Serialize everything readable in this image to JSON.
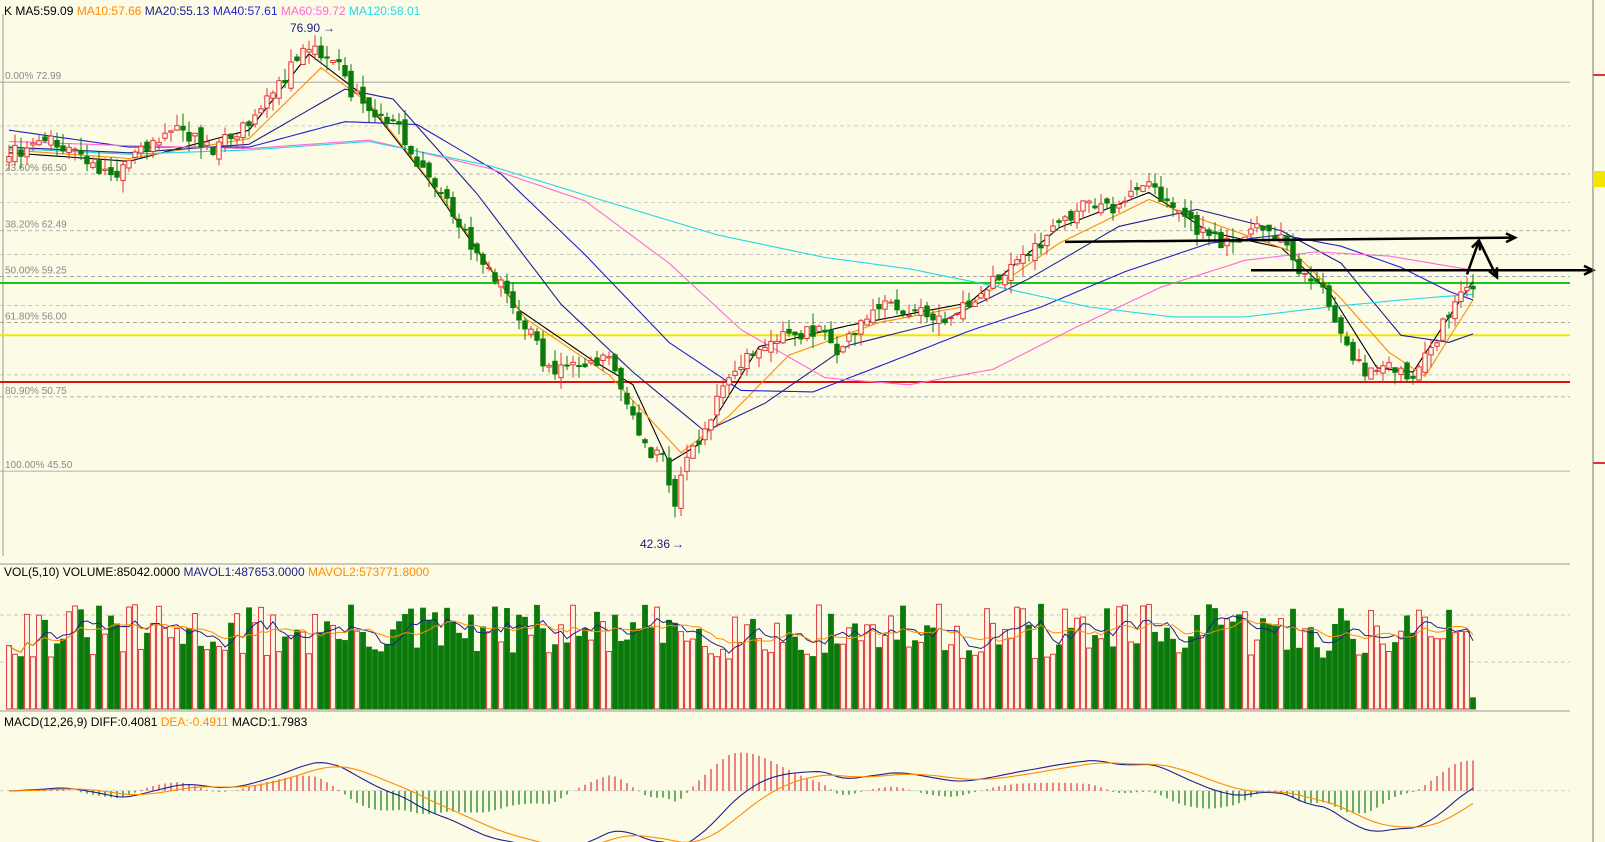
{
  "colors": {
    "background": "#fcfbe6",
    "up": "#e0343a",
    "down": "#0a7a0a",
    "ma5": "#000000",
    "ma10": "#ff8c00",
    "ma20": "#1f1f8f",
    "ma40": "#1f1fd0",
    "ma60": "#ff6ad5",
    "ma120": "#27d7e9",
    "grid": "#9a9a9a",
    "line_green": "#16c916",
    "line_yellow": "#f2e600",
    "line_red": "#e01010",
    "arrow": "#000000"
  },
  "price_legend": [
    {
      "text": "K",
      "color": "#000000"
    },
    {
      "text": "MA5:59.09",
      "color": "#000000"
    },
    {
      "text": "MA10:57.66",
      "color": "#ff8c00"
    },
    {
      "text": "MA20:55.13",
      "color": "#1f1f8f"
    },
    {
      "text": "MA40:57.61",
      "color": "#1f1fd0"
    },
    {
      "text": "MA60:59.72",
      "color": "#ff6ad5"
    },
    {
      "text": "MA120:58.01",
      "color": "#27d7e9"
    }
  ],
  "volume_legend": [
    {
      "text": "VOL(5,10)",
      "color": "#000000"
    },
    {
      "text": "VOLUME:85042.0000",
      "color": "#000000"
    },
    {
      "text": "MAVOL1:487653.0000",
      "color": "#1f1f8f"
    },
    {
      "text": "MAVOL2:573771.8000",
      "color": "#ff8c00"
    }
  ],
  "macd_legend": [
    {
      "text": "MACD(12,26,9)",
      "color": "#000000"
    },
    {
      "text": "DIFF:0.4081",
      "color": "#000000"
    },
    {
      "text": "DEA:-0.4911",
      "color": "#ff8c00"
    },
    {
      "text": "MACD:1.7983",
      "color": "#000000"
    }
  ],
  "extremes": {
    "high_label": "76.90",
    "low_label": "42.36"
  },
  "chart_data": [
    {
      "type": "candlestick",
      "title": "K",
      "ylim": [
        39.5,
        78.8
      ],
      "fib_levels": [
        {
          "label": "0.00% 72.99",
          "value": 72.99
        },
        {
          "label": "23.60% 66.50",
          "value": 66.5
        },
        {
          "label": "38.20% 62.49",
          "value": 62.49
        },
        {
          "label": "50.00% 59.25",
          "value": 59.25
        },
        {
          "label": "61.80% 56.00",
          "value": 56.0
        },
        {
          "label": "80.90% 50.75",
          "value": 50.75
        },
        {
          "label": "100.00% 45.50",
          "value": 45.5
        }
      ],
      "horizontal_lines": [
        {
          "value": 58.8,
          "color": "green"
        },
        {
          "value": 55.1,
          "color": "yellow"
        },
        {
          "value": 51.8,
          "color": "red"
        }
      ],
      "close_path": [
        [
          0,
          68.0
        ],
        [
          8,
          68.8
        ],
        [
          14,
          67.3
        ],
        [
          18,
          66.3
        ],
        [
          22,
          68.2
        ],
        [
          28,
          69.6
        ],
        [
          34,
          68.2
        ],
        [
          38,
          69.4
        ],
        [
          44,
          72.2
        ],
        [
          48,
          74.6
        ],
        [
          51,
          75.6
        ],
        [
          55,
          74.0
        ],
        [
          57,
          72.4
        ],
        [
          61,
          70.8
        ],
        [
          65,
          69.8
        ],
        [
          68,
          67.1
        ],
        [
          73,
          64.8
        ],
        [
          76,
          62.2
        ],
        [
          79,
          59.9
        ],
        [
          83,
          58.1
        ],
        [
          87,
          55.2
        ],
        [
          90,
          52.5
        ],
        [
          92,
          53.2
        ],
        [
          96,
          53.2
        ],
        [
          100,
          53.7
        ],
        [
          103,
          50.3
        ],
        [
          106,
          47.2
        ],
        [
          109,
          46.3
        ],
        [
          111,
          43.5
        ],
        [
          113,
          46.3
        ],
        [
          116,
          48.5
        ],
        [
          120,
          52.5
        ],
        [
          125,
          54.4
        ],
        [
          130,
          55.0
        ],
        [
          135,
          55.6
        ],
        [
          138,
          53.7
        ],
        [
          142,
          56.0
        ],
        [
          147,
          57.4
        ],
        [
          152,
          56.6
        ],
        [
          157,
          56.4
        ],
        [
          162,
          58.2
        ],
        [
          166,
          59.7
        ],
        [
          170,
          61.0
        ],
        [
          175,
          62.9
        ],
        [
          180,
          64.6
        ],
        [
          184,
          64.0
        ],
        [
          188,
          65.6
        ],
        [
          190,
          66.0
        ],
        [
          194,
          63.8
        ],
        [
          200,
          62.0
        ],
        [
          204,
          61.6
        ],
        [
          208,
          63.2
        ],
        [
          212,
          62.0
        ],
        [
          215,
          59.3
        ],
        [
          219,
          58.9
        ],
        [
          222,
          54.8
        ],
        [
          226,
          52.5
        ],
        [
          230,
          53.1
        ],
        [
          234,
          51.8
        ],
        [
          238,
          54.9
        ],
        [
          241,
          57.5
        ],
        [
          244,
          58.8
        ]
      ],
      "moving_averages": [
        {
          "name": "MA5",
          "color": "#000000",
          "path": [
            [
              0,
              68.0
            ],
            [
              20,
              67.4
            ],
            [
              40,
              69.6
            ],
            [
              50,
              75.0
            ],
            [
              58,
              72.4
            ],
            [
              70,
              66.0
            ],
            [
              85,
              56.9
            ],
            [
              97,
              53.4
            ],
            [
              104,
              51.6
            ],
            [
              110,
              46.1
            ],
            [
              115,
              47.4
            ],
            [
              125,
              54.3
            ],
            [
              140,
              55.8
            ],
            [
              160,
              57.4
            ],
            [
              175,
              62.7
            ],
            [
              190,
              65.2
            ],
            [
              200,
              62.4
            ],
            [
              212,
              61.3
            ],
            [
              220,
              58.2
            ],
            [
              228,
              52.8
            ],
            [
              234,
              52.5
            ],
            [
              240,
              56.4
            ],
            [
              244,
              58.9
            ]
          ]
        },
        {
          "name": "MA10",
          "color": "#ff8c00",
          "path": [
            [
              0,
              68.2
            ],
            [
              20,
              67.6
            ],
            [
              40,
              69.0
            ],
            [
              52,
              74.0
            ],
            [
              60,
              71.5
            ],
            [
              72,
              65.0
            ],
            [
              86,
              56.3
            ],
            [
              100,
              52.3
            ],
            [
              112,
              46.8
            ],
            [
              120,
              49.4
            ],
            [
              130,
              53.7
            ],
            [
              145,
              56.0
            ],
            [
              160,
              57.2
            ],
            [
              175,
              61.6
            ],
            [
              190,
              64.7
            ],
            [
              200,
              63.1
            ],
            [
              214,
              61.0
            ],
            [
              222,
              57.7
            ],
            [
              230,
              53.9
            ],
            [
              236,
              52.2
            ],
            [
              244,
              57.6
            ]
          ]
        },
        {
          "name": "MA20",
          "color": "#1f1f8f",
          "path": [
            [
              0,
              68.4
            ],
            [
              20,
              68.0
            ],
            [
              40,
              68.6
            ],
            [
              56,
              72.5
            ],
            [
              64,
              71.8
            ],
            [
              78,
              65.1
            ],
            [
              92,
              57.3
            ],
            [
              104,
              52.5
            ],
            [
              116,
              48.3
            ],
            [
              126,
              50.3
            ],
            [
              140,
              54.4
            ],
            [
              155,
              56.0
            ],
            [
              170,
              59.1
            ],
            [
              185,
              62.8
            ],
            [
              198,
              64.0
            ],
            [
              212,
              62.5
            ],
            [
              222,
              60.2
            ],
            [
              232,
              55.1
            ],
            [
              240,
              54.6
            ],
            [
              244,
              55.2
            ]
          ]
        },
        {
          "name": "MA40",
          "color": "#1f1fd0",
          "path": [
            [
              0,
              69.6
            ],
            [
              20,
              68.4
            ],
            [
              40,
              68.4
            ],
            [
              56,
              70.2
            ],
            [
              68,
              70.0
            ],
            [
              82,
              66.5
            ],
            [
              96,
              60.8
            ],
            [
              110,
              54.6
            ],
            [
              122,
              51.2
            ],
            [
              134,
              51.1
            ],
            [
              148,
              53.4
            ],
            [
              160,
              55.4
            ],
            [
              172,
              57.1
            ],
            [
              186,
              59.6
            ],
            [
              200,
              61.6
            ],
            [
              212,
              62.2
            ],
            [
              222,
              61.4
            ],
            [
              232,
              59.9
            ],
            [
              240,
              58.2
            ],
            [
              244,
              57.6
            ]
          ]
        },
        {
          "name": "MA60",
          "color": "#ff6ad5",
          "path": [
            [
              0,
              68.8
            ],
            [
              20,
              68.5
            ],
            [
              40,
              68.3
            ],
            [
              60,
              68.9
            ],
            [
              80,
              66.9
            ],
            [
              96,
              64.6
            ],
            [
              110,
              60.2
            ],
            [
              122,
              55.5
            ],
            [
              136,
              52.1
            ],
            [
              150,
              51.6
            ],
            [
              164,
              52.7
            ],
            [
              178,
              55.7
            ],
            [
              192,
              58.5
            ],
            [
              206,
              60.4
            ],
            [
              218,
              61.0
            ],
            [
              230,
              60.7
            ],
            [
              244,
              59.7
            ]
          ]
        },
        {
          "name": "MA120",
          "color": "#27d7e9",
          "path": [
            [
              0,
              68.3
            ],
            [
              20,
              67.9
            ],
            [
              40,
              68.2
            ],
            [
              60,
              68.8
            ],
            [
              80,
              67.1
            ],
            [
              100,
              64.5
            ],
            [
              118,
              62.2
            ],
            [
              136,
              60.6
            ],
            [
              150,
              59.8
            ],
            [
              164,
              58.6
            ],
            [
              180,
              57.1
            ],
            [
              194,
              56.4
            ],
            [
              206,
              56.4
            ],
            [
              220,
              57.1
            ],
            [
              232,
              57.6
            ],
            [
              244,
              58.0
            ]
          ]
        }
      ],
      "annotations": [
        {
          "type": "arrow",
          "from": [
            176,
            61.7
          ],
          "to": [
            251,
            62.0
          ]
        },
        {
          "type": "arrow",
          "from": [
            207,
            59.7
          ],
          "to": [
            264,
            59.7
          ]
        },
        {
          "type": "arrow",
          "from": [
            243,
            59.4
          ],
          "to": [
            245,
            61.8
          ]
        },
        {
          "type": "arrow",
          "from": [
            245,
            61.8
          ],
          "to": [
            248,
            59.2
          ]
        }
      ]
    },
    {
      "type": "bar",
      "title": "VOL(5,10)",
      "bars": 245,
      "ylim": [
        0,
        1000000
      ],
      "last_volume": 85042,
      "mavol1": 487653,
      "mavol2": 573771.8
    },
    {
      "type": "histogram",
      "title": "MACD(12,26,9)",
      "ylim": [
        -3.2,
        4.3
      ],
      "diff": 0.4081,
      "dea": -0.4911,
      "macd": 1.7983
    }
  ]
}
